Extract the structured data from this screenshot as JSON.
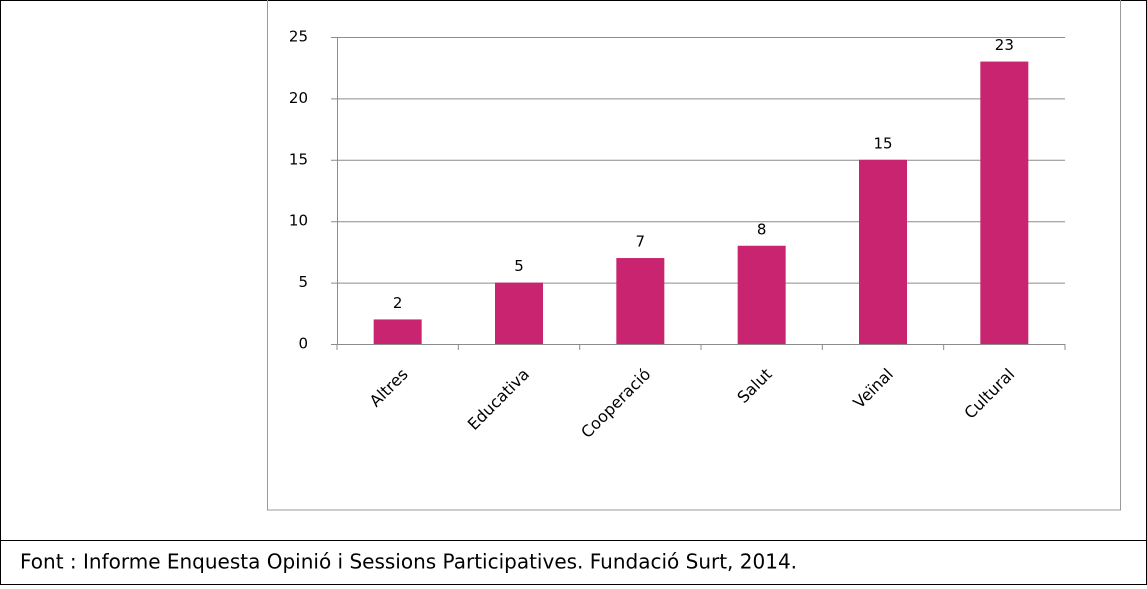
{
  "chart_data": {
    "type": "bar",
    "categories": [
      "Altres",
      "Educativa",
      "Cooperació",
      "Salut",
      "Veïnal",
      "Cultural"
    ],
    "values": [
      2,
      5,
      7,
      8,
      15,
      23
    ],
    "color": "#c8246f",
    "ylim": [
      0,
      25
    ],
    "yticks": [
      0,
      5,
      10,
      15,
      20,
      25
    ],
    "grid": true,
    "source": "Font : Informe Enquesta Opinió i Sessions Participatives. Fundació Surt, 2014."
  }
}
